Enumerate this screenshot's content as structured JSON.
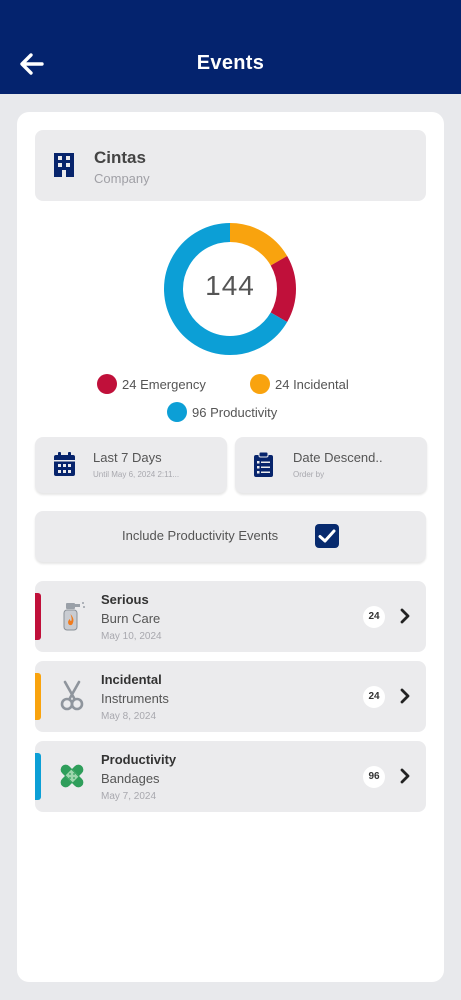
{
  "header": {
    "title": "Events",
    "back_icon": "arrow-left-icon"
  },
  "company": {
    "name": "Cintas",
    "subtitle": "Company",
    "icon": "building-icon"
  },
  "chart_data": {
    "type": "pie",
    "total_label": "144",
    "categories": [
      "Emergency",
      "Incidental",
      "Productivity"
    ],
    "values": [
      24,
      24,
      96
    ],
    "colors": [
      "#c0103a",
      "#f9a30e",
      "#0c9fd6"
    ]
  },
  "legend": [
    {
      "label": "24 Emergency",
      "color": "#c0103a"
    },
    {
      "label": "24 Incidental",
      "color": "#f9a30e"
    },
    {
      "label": "96 Productivity",
      "color": "#0c9fd6"
    }
  ],
  "filters": {
    "date_range": {
      "label": "Last 7 Days",
      "sub": "Until May 6, 2024 2:11...",
      "icon": "calendar-icon"
    },
    "order": {
      "label": "Date Descend..",
      "sub": "Order by",
      "icon": "clipboard-list-icon"
    }
  },
  "include_productivity": {
    "label": "Include Productivity Events",
    "checked": true
  },
  "events": [
    {
      "type": "Serious",
      "name": "Burn Care",
      "date": "May 10, 2024",
      "count": "24",
      "color": "#c0103a",
      "icon": "burn-spray-icon"
    },
    {
      "type": "Incidental",
      "name": "Instruments",
      "date": "May 8, 2024",
      "count": "24",
      "color": "#f9a30e",
      "icon": "scissors-icon"
    },
    {
      "type": "Productivity",
      "name": "Bandages",
      "date": "May 7, 2024",
      "count": "96",
      "color": "#0c9fd6",
      "icon": "bandage-icon"
    }
  ]
}
